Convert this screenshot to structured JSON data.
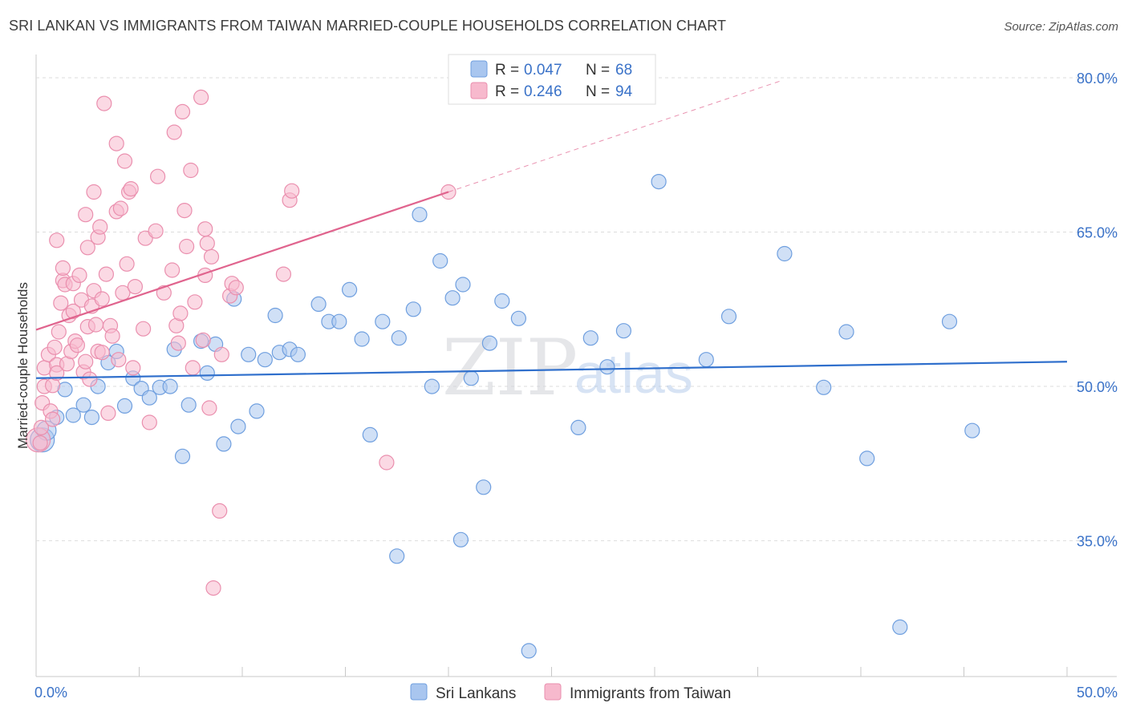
{
  "title": "SRI LANKAN VS IMMIGRANTS FROM TAIWAN MARRIED-COUPLE HOUSEHOLDS CORRELATION CHART",
  "source": "Source: ZipAtlas.com",
  "watermark": {
    "zip": "ZIP",
    "atlas": "atlas"
  },
  "legend": {
    "rows": [
      {
        "r_label": "R =",
        "r_value": "0.047",
        "n_label": "N =",
        "n_value": "68"
      },
      {
        "r_label": "R =",
        "r_value": "0.246",
        "n_label": "N =",
        "n_value": "94"
      }
    ]
  },
  "bottom_legend": {
    "series1": "Sri Lankans",
    "series2": "Immigrants from Taiwan"
  },
  "colors": {
    "blue_fill": "#a9c6ef",
    "blue_stroke": "#6f9fdf",
    "blue_line": "#2f6fcc",
    "pink_fill": "#f7b9cd",
    "pink_stroke": "#ea8fae",
    "pink_line": "#e0648e",
    "tick_label": "#3a72c8",
    "grid": "#dddddd"
  },
  "chart_data": {
    "type": "scatter",
    "title": "SRI LANKAN VS IMMIGRANTS FROM TAIWAN MARRIED-COUPLE HOUSEHOLDS CORRELATION CHART",
    "xlabel": "",
    "ylabel": "Married-couple Households",
    "xlim": [
      0,
      50
    ],
    "ylim": [
      20,
      82
    ],
    "x_tick_labels": [
      "0.0%",
      "50.0%"
    ],
    "y_ticks": [
      35,
      50,
      65,
      80
    ],
    "y_tick_labels": [
      "35.0%",
      "50.0%",
      "65.0%",
      "80.0%"
    ],
    "grid": true,
    "series": [
      {
        "name": "Sri Lankans",
        "R": 0.047,
        "N": 68,
        "trend": {
          "x1": 0,
          "y1": 50.8,
          "x2": 50,
          "y2": 52.4,
          "dashed_to_x": null
        },
        "points": [
          [
            0.3,
            44.8,
            "l"
          ],
          [
            0.5,
            45.7,
            "m"
          ],
          [
            1.0,
            47.0
          ],
          [
            1.4,
            49.7
          ],
          [
            1.8,
            47.2
          ],
          [
            2.3,
            48.2
          ],
          [
            2.7,
            47.0
          ],
          [
            3.0,
            50.0
          ],
          [
            3.5,
            52.3
          ],
          [
            3.9,
            53.4
          ],
          [
            4.3,
            48.1
          ],
          [
            4.7,
            50.8
          ],
          [
            5.1,
            49.8
          ],
          [
            5.5,
            48.9
          ],
          [
            6.0,
            49.9
          ],
          [
            6.5,
            50.0
          ],
          [
            6.7,
            53.6
          ],
          [
            7.1,
            43.2
          ],
          [
            7.4,
            48.2
          ],
          [
            8.0,
            54.4
          ],
          [
            8.3,
            51.3
          ],
          [
            8.7,
            54.1
          ],
          [
            9.1,
            44.4
          ],
          [
            9.6,
            58.5
          ],
          [
            9.8,
            46.1
          ],
          [
            10.3,
            53.1
          ],
          [
            10.7,
            47.6
          ],
          [
            11.1,
            52.6
          ],
          [
            11.6,
            56.9
          ],
          [
            11.8,
            53.3
          ],
          [
            12.3,
            53.6
          ],
          [
            12.7,
            53.1
          ],
          [
            13.7,
            58.0
          ],
          [
            14.2,
            56.3
          ],
          [
            14.7,
            56.3
          ],
          [
            15.2,
            59.4
          ],
          [
            15.8,
            54.6
          ],
          [
            16.2,
            45.3
          ],
          [
            16.8,
            56.3
          ],
          [
            17.5,
            33.5
          ],
          [
            17.6,
            54.7
          ],
          [
            18.3,
            57.5
          ],
          [
            18.6,
            66.7
          ],
          [
            19.2,
            50.0
          ],
          [
            19.6,
            62.2
          ],
          [
            20.2,
            58.6
          ],
          [
            20.6,
            35.1
          ],
          [
            20.7,
            59.9
          ],
          [
            21.1,
            50.8
          ],
          [
            21.7,
            40.2
          ],
          [
            22.0,
            54.2
          ],
          [
            22.6,
            58.3
          ],
          [
            23.4,
            56.6
          ],
          [
            23.9,
            24.3
          ],
          [
            26.3,
            46.0
          ],
          [
            26.9,
            54.7
          ],
          [
            27.7,
            51.9
          ],
          [
            28.5,
            55.4
          ],
          [
            30.2,
            69.9
          ],
          [
            32.5,
            52.6
          ],
          [
            33.6,
            56.8
          ],
          [
            36.3,
            62.9
          ],
          [
            38.2,
            49.9
          ],
          [
            39.3,
            55.3
          ],
          [
            40.3,
            43.0
          ],
          [
            41.9,
            26.6
          ],
          [
            44.3,
            56.3
          ],
          [
            45.4,
            45.7
          ]
        ]
      },
      {
        "name": "Immigrants from Taiwan",
        "R": 0.246,
        "N": 94,
        "trend": {
          "x1": 0,
          "y1": 55.5,
          "x2": 20,
          "y2": 68.9,
          "dashed_to_x": 36.1
        },
        "points": [
          [
            0.1,
            44.8,
            "l"
          ],
          [
            0.2,
            44.5
          ],
          [
            0.25,
            46.0
          ],
          [
            0.3,
            48.4
          ],
          [
            0.4,
            50.0
          ],
          [
            0.4,
            51.8
          ],
          [
            0.6,
            53.1
          ],
          [
            0.7,
            47.6
          ],
          [
            0.8,
            46.8
          ],
          [
            0.8,
            50.1
          ],
          [
            0.9,
            53.8
          ],
          [
            1.0,
            52.1
          ],
          [
            1.0,
            51.3
          ],
          [
            1.0,
            64.2
          ],
          [
            1.1,
            55.3
          ],
          [
            1.2,
            58.1
          ],
          [
            1.3,
            60.3
          ],
          [
            1.3,
            61.5
          ],
          [
            1.4,
            59.9
          ],
          [
            1.5,
            52.2
          ],
          [
            1.6,
            56.9
          ],
          [
            1.7,
            53.4
          ],
          [
            1.8,
            60.0
          ],
          [
            1.8,
            57.3
          ],
          [
            1.9,
            54.4
          ],
          [
            2.0,
            54.0
          ],
          [
            2.1,
            60.8
          ],
          [
            2.2,
            58.4
          ],
          [
            2.3,
            51.4
          ],
          [
            2.4,
            52.4
          ],
          [
            2.4,
            66.7
          ],
          [
            2.5,
            63.5
          ],
          [
            2.5,
            55.8
          ],
          [
            2.6,
            50.7
          ],
          [
            2.7,
            57.8
          ],
          [
            2.8,
            59.3
          ],
          [
            2.8,
            68.9
          ],
          [
            2.9,
            56.0
          ],
          [
            3.0,
            53.4
          ],
          [
            3.0,
            64.5
          ],
          [
            3.1,
            65.5
          ],
          [
            3.2,
            53.3
          ],
          [
            3.2,
            58.5
          ],
          [
            3.3,
            77.5
          ],
          [
            3.4,
            60.9
          ],
          [
            3.5,
            47.4
          ],
          [
            3.6,
            55.9
          ],
          [
            3.7,
            54.9
          ],
          [
            3.9,
            67.0
          ],
          [
            3.9,
            73.6
          ],
          [
            4.0,
            52.6
          ],
          [
            4.1,
            67.3
          ],
          [
            4.2,
            59.1
          ],
          [
            4.3,
            71.9
          ],
          [
            4.4,
            61.9
          ],
          [
            4.5,
            68.9
          ],
          [
            4.6,
            69.2
          ],
          [
            4.7,
            51.8
          ],
          [
            4.8,
            59.7
          ],
          [
            5.2,
            55.6
          ],
          [
            5.3,
            64.4
          ],
          [
            5.5,
            46.5
          ],
          [
            5.8,
            65.1
          ],
          [
            5.9,
            70.4
          ],
          [
            6.2,
            59.1
          ],
          [
            6.6,
            61.3
          ],
          [
            6.7,
            74.7
          ],
          [
            6.8,
            55.9
          ],
          [
            6.9,
            54.2
          ],
          [
            7.0,
            57.1
          ],
          [
            7.1,
            76.7
          ],
          [
            7.2,
            67.1
          ],
          [
            7.3,
            63.6
          ],
          [
            7.5,
            71.0
          ],
          [
            7.6,
            51.8
          ],
          [
            7.7,
            58.2
          ],
          [
            8.0,
            78.1
          ],
          [
            8.1,
            54.5
          ],
          [
            8.2,
            60.8
          ],
          [
            8.2,
            65.3
          ],
          [
            8.3,
            63.9
          ],
          [
            8.4,
            47.9
          ],
          [
            8.5,
            62.6
          ],
          [
            8.6,
            30.4
          ],
          [
            8.9,
            37.9
          ],
          [
            9.0,
            53.1
          ],
          [
            9.4,
            58.8
          ],
          [
            9.5,
            60.0
          ],
          [
            9.7,
            59.6
          ],
          [
            12.0,
            60.9
          ],
          [
            12.3,
            68.1
          ],
          [
            12.4,
            69.0
          ],
          [
            17.0,
            42.6
          ],
          [
            20.0,
            68.9
          ]
        ]
      }
    ]
  }
}
